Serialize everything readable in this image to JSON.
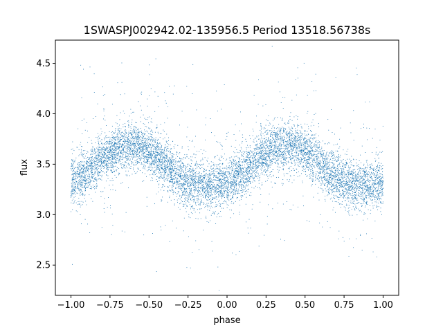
{
  "chart_data": {
    "type": "scatter",
    "title": "1SWASPJ002942.02-135956.5 Period 13518.56738s",
    "xlabel": "phase",
    "ylabel": "flux",
    "xlim": [
      -1.1,
      1.1
    ],
    "ylim": [
      2.2,
      4.73
    ],
    "xticks": [
      -1.0,
      -0.75,
      -0.5,
      -0.25,
      0.0,
      0.25,
      0.5,
      0.75,
      1.0
    ],
    "xtick_labels": [
      "−1.00",
      "−0.75",
      "−0.50",
      "−0.25",
      "0.00",
      "0.25",
      "0.50",
      "0.75",
      "1.00"
    ],
    "yticks": [
      2.5,
      3.0,
      3.5,
      4.0,
      4.5
    ],
    "ytick_labels": [
      "2.5",
      "3.0",
      "3.5",
      "4.0",
      "4.5"
    ],
    "grid": false,
    "marker_color": "#1f77b4",
    "series": [
      {
        "x": [
          -1.0,
          -0.95,
          -0.9,
          -0.85,
          -0.8,
          -0.75,
          -0.7,
          -0.65,
          -0.6,
          -0.55,
          -0.5,
          -0.45,
          -0.4,
          -0.35,
          -0.3,
          -0.25,
          -0.2,
          -0.15,
          -0.1,
          -0.05,
          0.0,
          0.05,
          0.1,
          0.15,
          0.2,
          0.25,
          0.3,
          0.35,
          0.4,
          0.45,
          0.5,
          0.55,
          0.6,
          0.65,
          0.7,
          0.75,
          0.8,
          0.85,
          0.9,
          0.95,
          1.0
        ],
        "y": [
          3.32,
          3.37,
          3.42,
          3.49,
          3.55,
          3.6,
          3.65,
          3.68,
          3.69,
          3.67,
          3.63,
          3.57,
          3.5,
          3.43,
          3.37,
          3.33,
          3.3,
          3.29,
          3.29,
          3.3,
          3.32,
          3.37,
          3.42,
          3.49,
          3.55,
          3.6,
          3.65,
          3.68,
          3.69,
          3.67,
          3.63,
          3.57,
          3.5,
          3.43,
          3.37,
          3.33,
          3.3,
          3.29,
          3.29,
          3.3,
          3.32
        ],
        "scatter_sd": 0.12
      }
    ]
  }
}
